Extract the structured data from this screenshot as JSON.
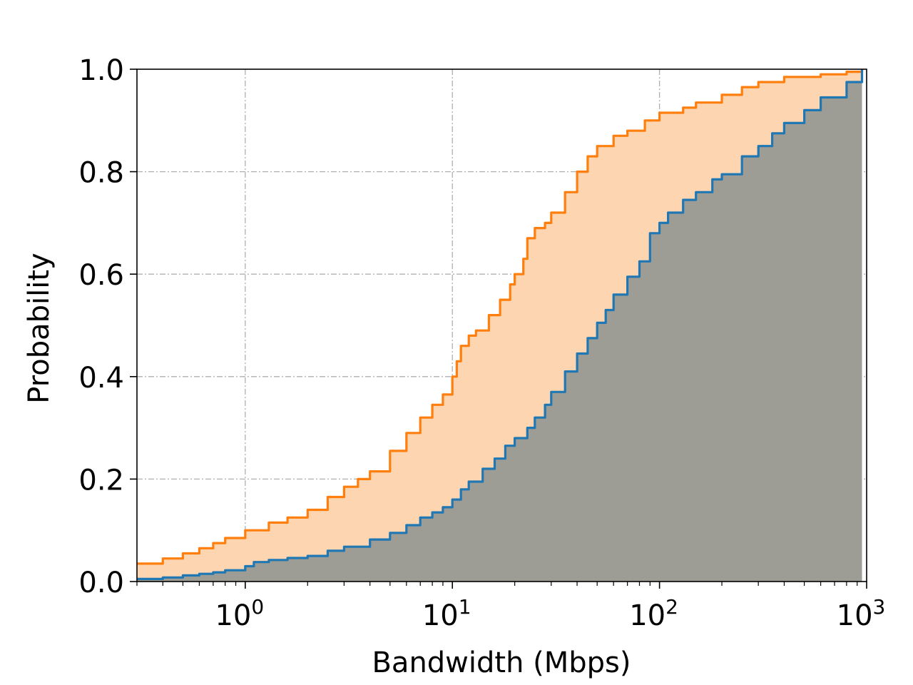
{
  "chart_data": {
    "type": "area",
    "xlabel": "Bandwidth (Mbps)",
    "ylabel": "Probability",
    "x_scale": "log",
    "xlim": [
      0.3,
      1000
    ],
    "ylim": [
      0.0,
      1.0
    ],
    "grid": true,
    "x_ticks": [
      {
        "value": 1,
        "base": "10",
        "exp": "0"
      },
      {
        "value": 10,
        "base": "10",
        "exp": "1"
      },
      {
        "value": 100,
        "base": "10",
        "exp": "2"
      },
      {
        "value": 1000,
        "base": "10",
        "exp": "3"
      }
    ],
    "y_ticks": [
      {
        "value": 0.0,
        "label": "0.0"
      },
      {
        "value": 0.2,
        "label": "0.2"
      },
      {
        "value": 0.4,
        "label": "0.4"
      },
      {
        "value": 0.6,
        "label": "0.6"
      },
      {
        "value": 0.8,
        "label": "0.8"
      },
      {
        "value": 1.0,
        "label": "1.0"
      }
    ],
    "series": [
      {
        "color": "#ff7f0e",
        "fill_color": "#fdd5b0",
        "x": [
          0.3,
          0.4,
          0.5,
          0.6,
          0.7,
          0.8,
          1.0,
          1.3,
          1.6,
          2.0,
          2.5,
          3.0,
          3.5,
          4.0,
          5.0,
          6.0,
          7.0,
          8.0,
          9.0,
          10.0,
          10.5,
          11.0,
          12.0,
          13.0,
          15.0,
          17.0,
          19.0,
          20.0,
          22.0,
          23.0,
          25.0,
          28.0,
          30.0,
          35.0,
          40.0,
          45.0,
          50.0,
          60.0,
          70.0,
          85.0,
          100.0,
          130.0,
          150.0,
          200.0,
          250.0,
          300.0,
          400.0,
          600.0,
          800.0,
          950.0
        ],
        "y": [
          0.035,
          0.045,
          0.055,
          0.065,
          0.075,
          0.085,
          0.1,
          0.115,
          0.125,
          0.14,
          0.165,
          0.185,
          0.2,
          0.215,
          0.255,
          0.29,
          0.32,
          0.345,
          0.365,
          0.4,
          0.43,
          0.46,
          0.48,
          0.49,
          0.52,
          0.55,
          0.58,
          0.6,
          0.63,
          0.67,
          0.69,
          0.7,
          0.72,
          0.76,
          0.8,
          0.83,
          0.85,
          0.87,
          0.88,
          0.9,
          0.915,
          0.925,
          0.935,
          0.95,
          0.965,
          0.975,
          0.985,
          0.99,
          0.995,
          1.0
        ]
      },
      {
        "color": "#1f77b4",
        "fill_color": "#9e9d95",
        "x": [
          0.3,
          0.4,
          0.5,
          0.6,
          0.7,
          0.8,
          1.0,
          1.1,
          1.3,
          1.6,
          2.0,
          2.5,
          3.0,
          4.0,
          5.0,
          6.0,
          7.0,
          8.0,
          9.0,
          10.0,
          11.0,
          12.0,
          14.0,
          16.0,
          18.0,
          20.0,
          23.0,
          25.0,
          28.0,
          30.0,
          35.0,
          40.0,
          45.0,
          50.0,
          55.0,
          60.0,
          70.0,
          80.0,
          90.0,
          100.0,
          110.0,
          130.0,
          150.0,
          180.0,
          200.0,
          250.0,
          300.0,
          350.0,
          400.0,
          500.0,
          600.0,
          800.0,
          950.0
        ],
        "y": [
          0.005,
          0.008,
          0.012,
          0.015,
          0.018,
          0.022,
          0.03,
          0.038,
          0.042,
          0.046,
          0.05,
          0.06,
          0.068,
          0.082,
          0.095,
          0.11,
          0.125,
          0.135,
          0.145,
          0.16,
          0.18,
          0.195,
          0.22,
          0.24,
          0.265,
          0.28,
          0.3,
          0.32,
          0.345,
          0.37,
          0.41,
          0.445,
          0.475,
          0.505,
          0.53,
          0.56,
          0.595,
          0.625,
          0.68,
          0.7,
          0.72,
          0.745,
          0.76,
          0.785,
          0.795,
          0.83,
          0.85,
          0.875,
          0.895,
          0.92,
          0.945,
          0.975,
          1.0
        ]
      }
    ]
  }
}
